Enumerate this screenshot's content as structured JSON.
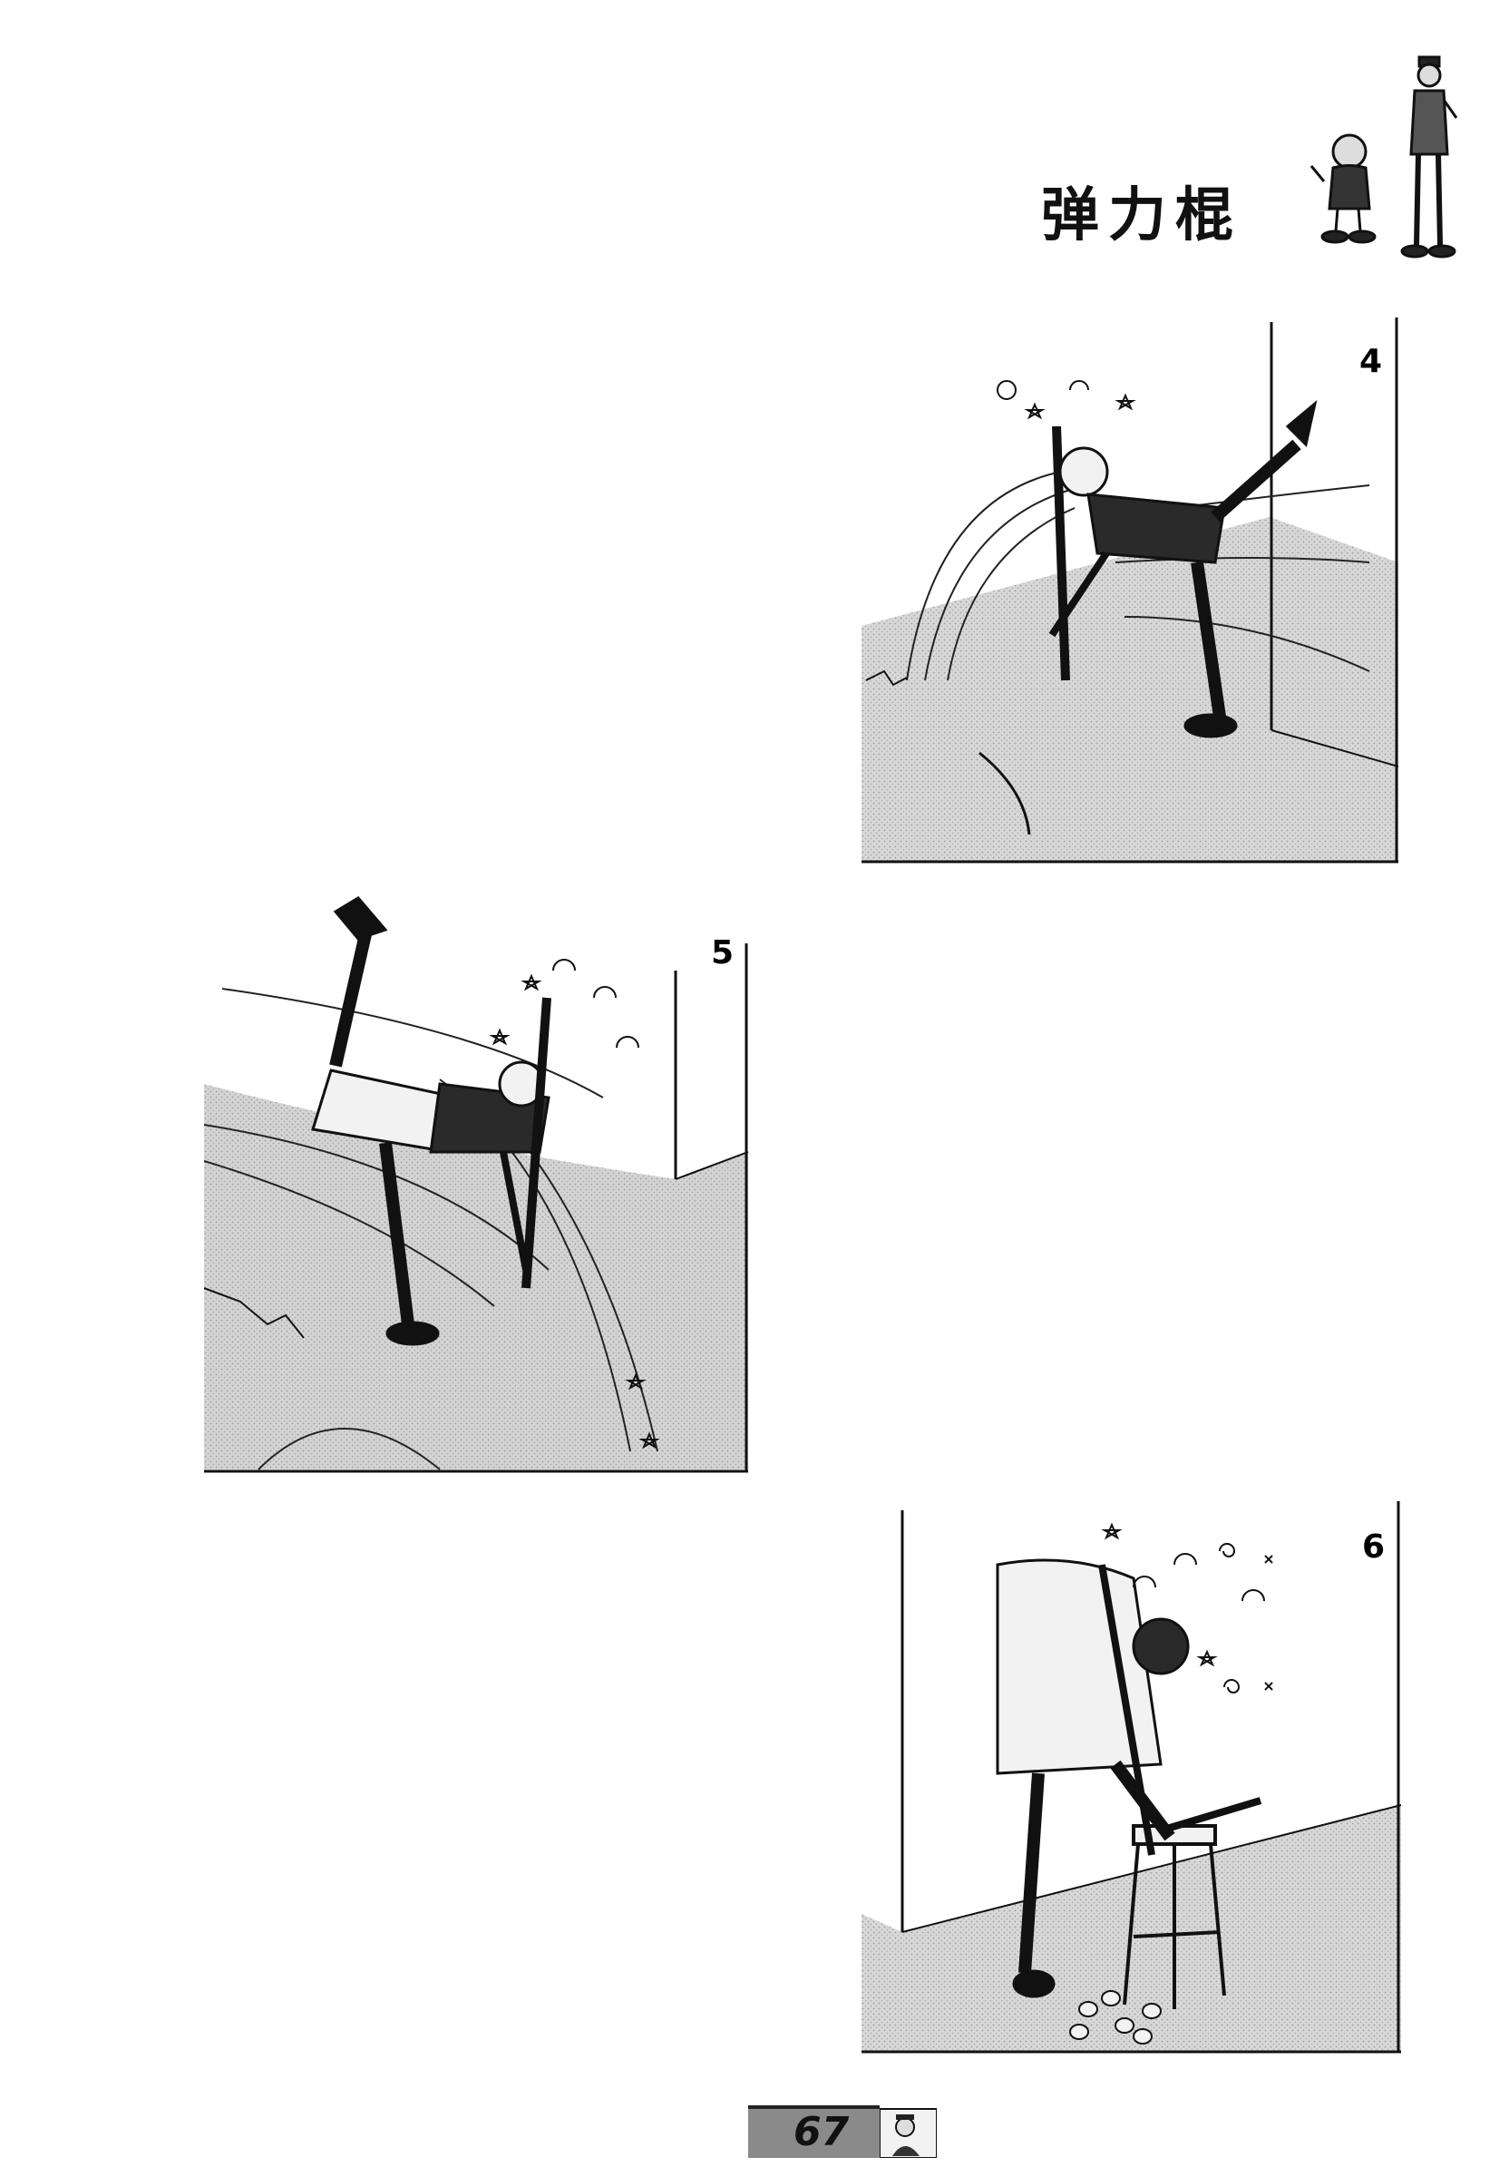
{
  "header": {
    "title": "弹力棍"
  },
  "panels": [
    {
      "number": "4"
    },
    {
      "number": "5"
    },
    {
      "number": "6"
    }
  ],
  "footer": {
    "page_number": "67"
  }
}
